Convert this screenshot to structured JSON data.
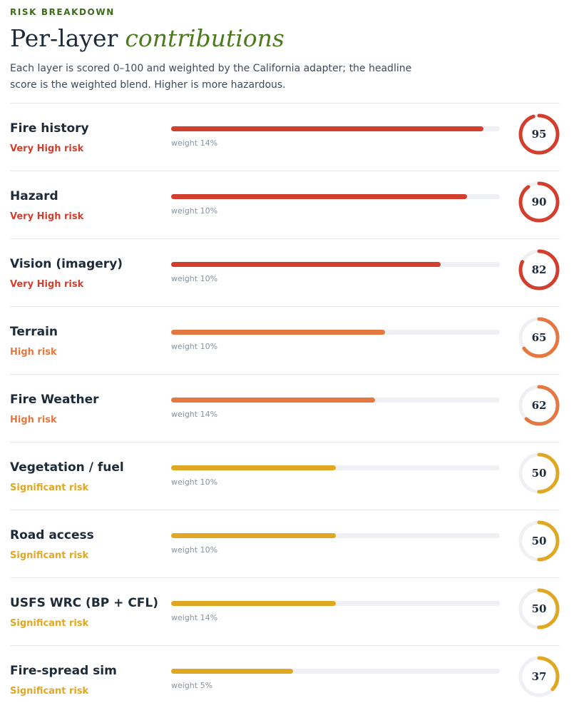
{
  "header": {
    "eyebrow": "RISK BREAKDOWN",
    "title": "Per-layer",
    "title_emphasis": "contributions",
    "description": "Each layer is scored 0–100 and weighted by the California adapter; the headline score is the weighted blend. Higher is more hazardous."
  },
  "score_range": [
    0,
    100
  ],
  "rows": [
    {
      "name": "Fire history",
      "risk": "Very High risk",
      "weight": "weight 14%",
      "score": 95,
      "color": "#d23f2f"
    },
    {
      "name": "Hazard",
      "risk": "Very High risk",
      "weight": "weight 10%",
      "score": 90,
      "color": "#d23f2f"
    },
    {
      "name": "Vision (imagery)",
      "risk": "Very High risk",
      "weight": "weight 10%",
      "score": 82,
      "color": "#d23f2f"
    },
    {
      "name": "Terrain",
      "risk": "High risk",
      "weight": "weight 10%",
      "score": 65,
      "color": "#e57840"
    },
    {
      "name": "Fire Weather",
      "risk": "High risk",
      "weight": "weight 14%",
      "score": 62,
      "color": "#e57840"
    },
    {
      "name": "Vegetation / fuel",
      "risk": "Significant risk",
      "weight": "weight 10%",
      "score": 50,
      "color": "#e0a822"
    },
    {
      "name": "Road access",
      "risk": "Significant risk",
      "weight": "weight 10%",
      "score": 50,
      "color": "#e0a822"
    },
    {
      "name": "USFS WRC (BP + CFL)",
      "risk": "Significant risk",
      "weight": "weight 14%",
      "score": 50,
      "color": "#e0a822"
    },
    {
      "name": "Fire-spread sim",
      "risk": "Significant risk",
      "weight": "weight 5%",
      "score": 37,
      "color": "#e0a822"
    }
  ]
}
